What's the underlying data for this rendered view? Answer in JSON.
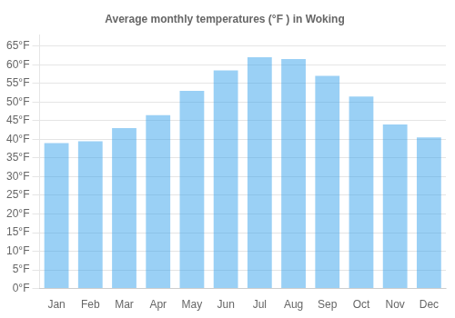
{
  "chart_data": {
    "type": "bar",
    "title": "Average monthly temperatures (°F ) in Woking",
    "categories": [
      "Jan",
      "Feb",
      "Mar",
      "Apr",
      "May",
      "Jun",
      "Jul",
      "Aug",
      "Sep",
      "Oct",
      "Nov",
      "Dec"
    ],
    "values": [
      39,
      39.5,
      43,
      46.5,
      53,
      58.5,
      62,
      61.5,
      57,
      51.5,
      44,
      40.5
    ],
    "ylim": [
      0,
      68
    ],
    "yticks": [
      {
        "value": 0,
        "label": "0°F"
      },
      {
        "value": 5,
        "label": "5°F"
      },
      {
        "value": 10,
        "label": "10°F"
      },
      {
        "value": 15,
        "label": "15°F"
      },
      {
        "value": 20,
        "label": "20°F"
      },
      {
        "value": 25,
        "label": "25°F"
      },
      {
        "value": 30,
        "label": "30°F"
      },
      {
        "value": 35,
        "label": "35°F"
      },
      {
        "value": 40,
        "label": "40°F"
      },
      {
        "value": 45,
        "label": "45°F"
      },
      {
        "value": 50,
        "label": "50°F"
      },
      {
        "value": 55,
        "label": "55°F"
      },
      {
        "value": 60,
        "label": "60°F"
      },
      {
        "value": 65,
        "label": "65°F"
      }
    ],
    "grid": true
  }
}
